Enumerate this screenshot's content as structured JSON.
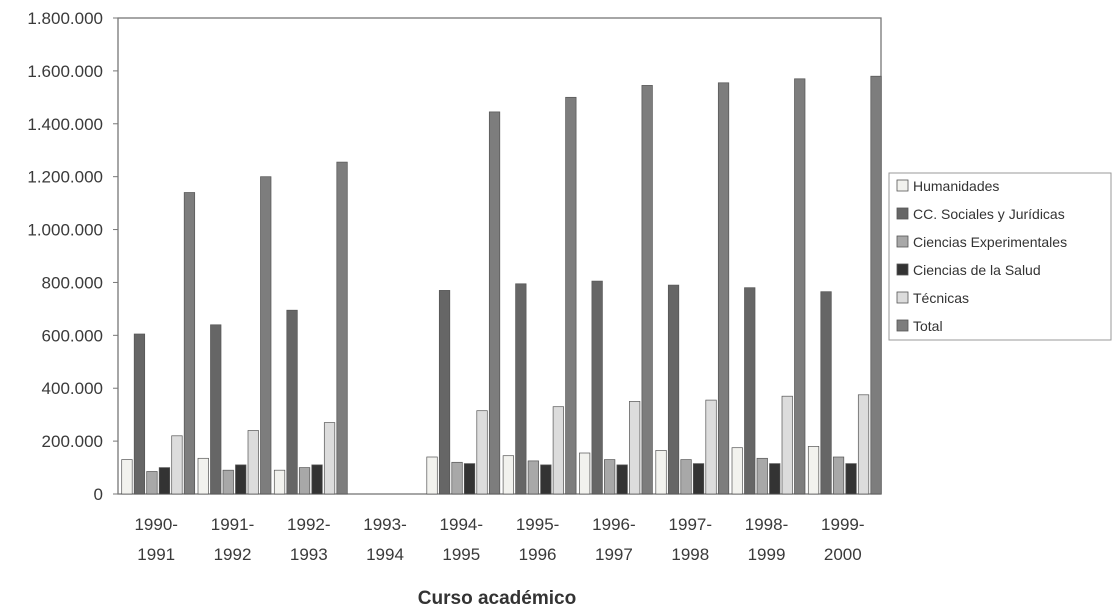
{
  "chart_data": {
    "type": "bar",
    "title": "",
    "xlabel": "Curso académico",
    "ylabel": "",
    "ylim": [
      0,
      1800000
    ],
    "y_ticks": [
      "0",
      "200.000",
      "400.000",
      "600.000",
      "800.000",
      "1.000.000",
      "1.200.000",
      "1.400.000",
      "1.600.000",
      "1.800.000"
    ],
    "y_tick_values": [
      0,
      200000,
      400000,
      600000,
      800000,
      1000000,
      1200000,
      1400000,
      1600000,
      1800000
    ],
    "categories": [
      [
        "1990-",
        "1991"
      ],
      [
        "1991-",
        "1992"
      ],
      [
        "1992-",
        "1993"
      ],
      [
        "1993-",
        "1994"
      ],
      [
        "1994-",
        "1995"
      ],
      [
        "1995-",
        "1996"
      ],
      [
        "1996-",
        "1997"
      ],
      [
        "1997-",
        "1998"
      ],
      [
        "1998-",
        "1999"
      ],
      [
        "1999-",
        "2000"
      ]
    ],
    "grid": false,
    "legend_position": "right",
    "series": [
      {
        "name": "Humanidades",
        "color": "#f2f2ee",
        "values": [
          130000,
          135000,
          90000,
          null,
          140000,
          145000,
          155000,
          165000,
          175000,
          180000
        ]
      },
      {
        "name": "CC. Sociales y Jurídicas",
        "color": "#666666",
        "values": [
          605000,
          640000,
          695000,
          null,
          770000,
          795000,
          805000,
          790000,
          780000,
          765000
        ]
      },
      {
        "name": "Ciencias Experimentales",
        "color": "#a8a8a8",
        "values": [
          85000,
          90000,
          100000,
          null,
          120000,
          125000,
          130000,
          130000,
          135000,
          140000
        ]
      },
      {
        "name": "Ciencias de la Salud",
        "color": "#333333",
        "values": [
          100000,
          110000,
          110000,
          null,
          115000,
          110000,
          110000,
          115000,
          115000,
          115000
        ]
      },
      {
        "name": "Técnicas",
        "color": "#dcdcdc",
        "values": [
          220000,
          240000,
          270000,
          null,
          315000,
          330000,
          350000,
          355000,
          370000,
          375000
        ]
      },
      {
        "name": "Total",
        "color": "#7d7d7d",
        "values": [
          1140000,
          1200000,
          1255000,
          null,
          1445000,
          1500000,
          1545000,
          1555000,
          1570000,
          1580000
        ]
      }
    ]
  }
}
